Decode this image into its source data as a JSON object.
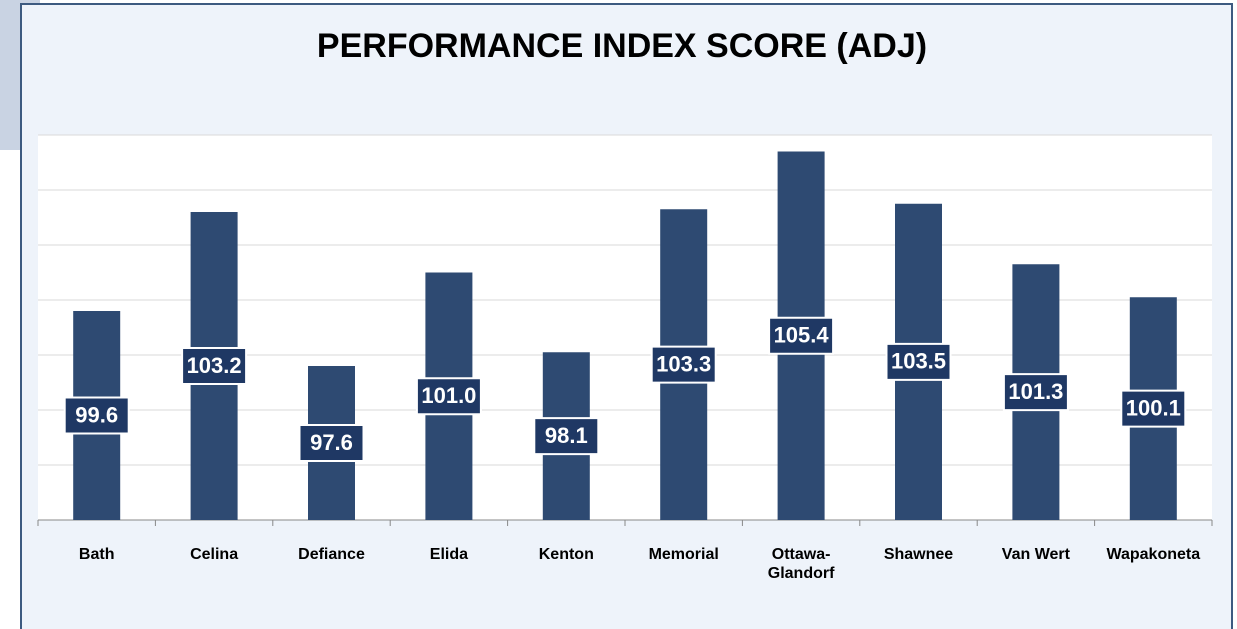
{
  "chart_data": {
    "type": "bar",
    "title": "PERFORMANCE INDEX SCORE (ADJ)",
    "categories": [
      "Bath",
      "Celina",
      "Defiance",
      "Elida",
      "Kenton",
      "Memorial",
      "Ottawa-Glandorf",
      "Shawnee",
      "Van Wert",
      "Wapakoneta"
    ],
    "values": [
      99.6,
      103.2,
      97.6,
      101.0,
      98.1,
      103.3,
      105.4,
      103.5,
      101.3,
      100.1
    ],
    "value_labels": [
      "99.6",
      "103.2",
      "97.6",
      "101.0",
      "98.1",
      "103.3",
      "105.4",
      "103.5",
      "101.3",
      "100.1"
    ],
    "color": "#2e4a72",
    "ylim": [
      92,
      106
    ],
    "yticks": [
      92,
      94,
      96,
      98,
      100,
      102,
      104,
      106
    ],
    "grid": true
  }
}
